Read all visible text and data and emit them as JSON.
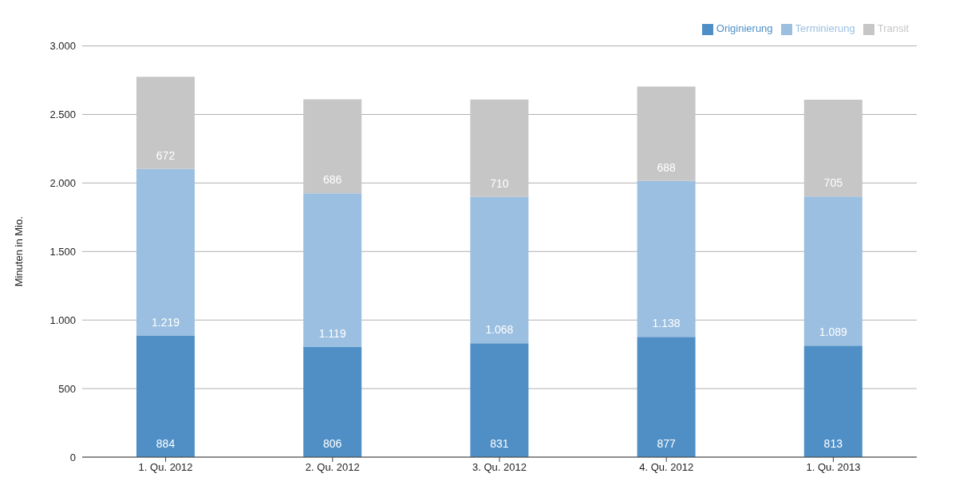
{
  "chart_data": {
    "type": "bar",
    "stacked": true,
    "ylabel": "Minuten in Mio.",
    "categories": [
      "1. Qu. 2012",
      "2. Qu. 2012",
      "3. Qu. 2012",
      "4. Qu. 2012",
      "1. Qu. 2013"
    ],
    "series": [
      {
        "name": "Originierung",
        "color": "#4f8fc6",
        "values": [
          884,
          806,
          831,
          877,
          813
        ],
        "value_labels": [
          "884",
          "806",
          "831",
          "877",
          "813"
        ]
      },
      {
        "name": "Terminierung",
        "color": "#9bbfe0",
        "values": [
          1219,
          1119,
          1068,
          1138,
          1089
        ],
        "value_labels": [
          "1.219",
          "1.119",
          "1.068",
          "1.138",
          "1.089"
        ]
      },
      {
        "name": "Transit",
        "color": "#c6c6c6",
        "values": [
          672,
          686,
          710,
          688,
          705
        ],
        "value_labels": [
          "672",
          "686",
          "710",
          "688",
          "705"
        ]
      }
    ],
    "ylim": [
      0,
      3000
    ],
    "yticks": [
      0,
      500,
      {
        "value": 1000,
        "label": "1.000"
      },
      {
        "value": 1500,
        "label": "1.500"
      },
      {
        "value": 2000,
        "label": "2.000"
      },
      {
        "value": 2500,
        "label": "2.500"
      },
      {
        "value": 3000,
        "label": "3.000"
      }
    ],
    "grid": "y",
    "legend": "top right"
  }
}
